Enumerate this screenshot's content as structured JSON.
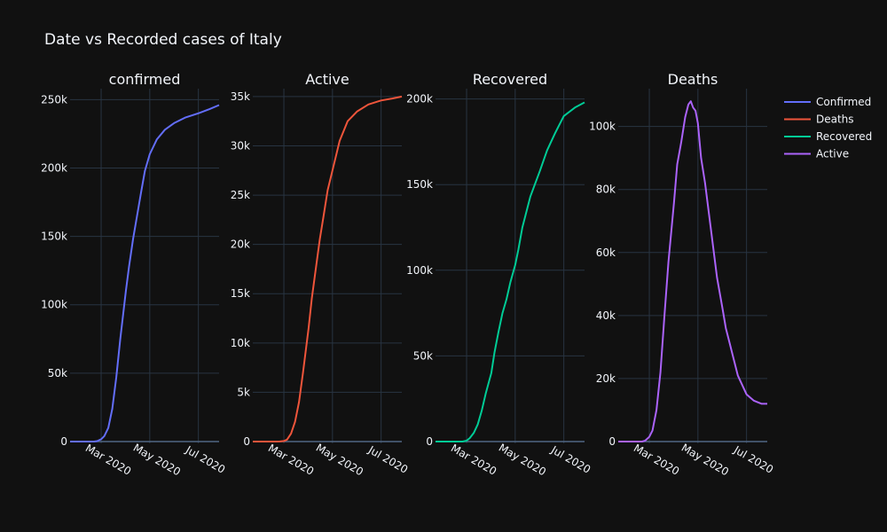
{
  "chart_title": "Date vs Recorded cases of Italy",
  "x_tick_labels": [
    "Mar 2020",
    "May 2020",
    "Jul 2020"
  ],
  "legend": [
    {
      "label": "Confirmed",
      "color": "#636efa"
    },
    {
      "label": "Deaths",
      "color": "#ef553b"
    },
    {
      "label": "Recovered",
      "color": "#00cc96"
    },
    {
      "label": "Active",
      "color": "#ab63fa"
    }
  ],
  "chart_data": [
    {
      "type": "line",
      "title": "confirmed",
      "color": "#636efa",
      "xlim": [
        "2020-01-22",
        "2020-07-27"
      ],
      "ylim": [
        0,
        258000
      ],
      "y_ticks": [
        0,
        50000,
        100000,
        150000,
        200000,
        250000
      ],
      "y_tick_labels": [
        "0",
        "50k",
        "100k",
        "150k",
        "200k",
        "250k"
      ],
      "series": [
        {
          "x": [
            "2020-01-22",
            "2020-02-21",
            "2020-02-25",
            "2020-03-01",
            "2020-03-05",
            "2020-03-10",
            "2020-03-15",
            "2020-03-20",
            "2020-03-25",
            "2020-04-01",
            "2020-04-05",
            "2020-04-10",
            "2020-04-15",
            "2020-04-20",
            "2020-04-25",
            "2020-05-01",
            "2020-05-10",
            "2020-05-20",
            "2020-06-01",
            "2020-06-15",
            "2020-07-01",
            "2020-07-15",
            "2020-07-27"
          ],
          "y": [
            0,
            0,
            300,
            1700,
            4000,
            10000,
            24000,
            47000,
            75000,
            110000,
            128000,
            148000,
            165000,
            182000,
            198000,
            210000,
            221000,
            228000,
            233000,
            237000,
            240000,
            243000,
            246000
          ]
        }
      ]
    },
    {
      "type": "line",
      "title": "Active",
      "color": "#ef553b",
      "xlim": [
        "2020-01-22",
        "2020-07-27"
      ],
      "ylim": [
        0,
        35800
      ],
      "y_ticks": [
        0,
        5000,
        10000,
        15000,
        20000,
        25000,
        30000,
        35000
      ],
      "y_tick_labels": [
        "0",
        "5k",
        "10k",
        "15k",
        "20k",
        "25k",
        "30k",
        "35k"
      ],
      "series": [
        {
          "x": [
            "2020-01-22",
            "2020-02-21",
            "2020-02-25",
            "2020-03-01",
            "2020-03-05",
            "2020-03-10",
            "2020-03-15",
            "2020-03-20",
            "2020-03-25",
            "2020-04-01",
            "2020-04-05",
            "2020-04-10",
            "2020-04-15",
            "2020-04-20",
            "2020-04-25",
            "2020-05-01",
            "2020-05-10",
            "2020-05-20",
            "2020-06-01",
            "2020-06-15",
            "2020-07-01",
            "2020-07-15",
            "2020-07-27"
          ],
          "y": [
            0,
            0,
            10,
            50,
            200,
            800,
            2000,
            4000,
            7000,
            11500,
            14500,
            17500,
            20500,
            23000,
            25500,
            27500,
            30500,
            32500,
            33500,
            34200,
            34600,
            34800,
            35000
          ]
        }
      ]
    },
    {
      "type": "line",
      "title": "Recovered",
      "color": "#00cc96",
      "xlim": [
        "2020-01-22",
        "2020-07-27"
      ],
      "ylim": [
        0,
        206000
      ],
      "y_ticks": [
        0,
        50000,
        100000,
        150000,
        200000
      ],
      "y_tick_labels": [
        "0",
        "50k",
        "100k",
        "150k",
        "200k"
      ],
      "series": [
        {
          "x": [
            "2020-01-22",
            "2020-02-25",
            "2020-03-01",
            "2020-03-05",
            "2020-03-10",
            "2020-03-15",
            "2020-03-20",
            "2020-03-25",
            "2020-04-01",
            "2020-04-05",
            "2020-04-10",
            "2020-04-15",
            "2020-04-20",
            "2020-04-25",
            "2020-05-01",
            "2020-05-05",
            "2020-05-10",
            "2020-05-20",
            "2020-06-01",
            "2020-06-10",
            "2020-06-20",
            "2020-07-01",
            "2020-07-15",
            "2020-07-27"
          ],
          "y": [
            0,
            0,
            500,
            2000,
            5000,
            10000,
            18000,
            28000,
            40000,
            52000,
            64000,
            75000,
            83000,
            93000,
            103000,
            112000,
            125000,
            143000,
            158000,
            170000,
            180000,
            190000,
            195000,
            198000
          ]
        }
      ]
    },
    {
      "type": "line",
      "title": "Deaths",
      "color": "#ab63fa",
      "xlim": [
        "2020-01-22",
        "2020-07-27"
      ],
      "ylim": [
        0,
        112000
      ],
      "y_ticks": [
        0,
        20000,
        40000,
        60000,
        80000,
        100000
      ],
      "y_tick_labels": [
        "0",
        "20k",
        "40k",
        "60k",
        "80k",
        "100k"
      ],
      "series": [
        {
          "x": [
            "2020-01-22",
            "2020-02-21",
            "2020-02-25",
            "2020-03-01",
            "2020-03-05",
            "2020-03-10",
            "2020-03-15",
            "2020-03-20",
            "2020-03-25",
            "2020-04-01",
            "2020-04-05",
            "2020-04-10",
            "2020-04-15",
            "2020-04-19",
            "2020-04-22",
            "2020-04-25",
            "2020-04-28",
            "2020-05-01",
            "2020-05-05",
            "2020-05-10",
            "2020-05-15",
            "2020-05-20",
            "2020-05-25",
            "2020-06-01",
            "2020-06-05",
            "2020-06-10",
            "2020-06-15",
            "2020-06-20",
            "2020-07-01",
            "2020-07-10",
            "2020-07-20",
            "2020-07-27"
          ],
          "y": [
            0,
            0,
            300,
            1500,
            3500,
            10000,
            22000,
            40000,
            57000,
            76000,
            88000,
            95000,
            103000,
            107000,
            108000,
            106000,
            105000,
            101000,
            90000,
            82000,
            72000,
            62000,
            52000,
            42000,
            36000,
            31000,
            26000,
            21000,
            15000,
            13000,
            12000,
            12000
          ]
        }
      ]
    }
  ]
}
